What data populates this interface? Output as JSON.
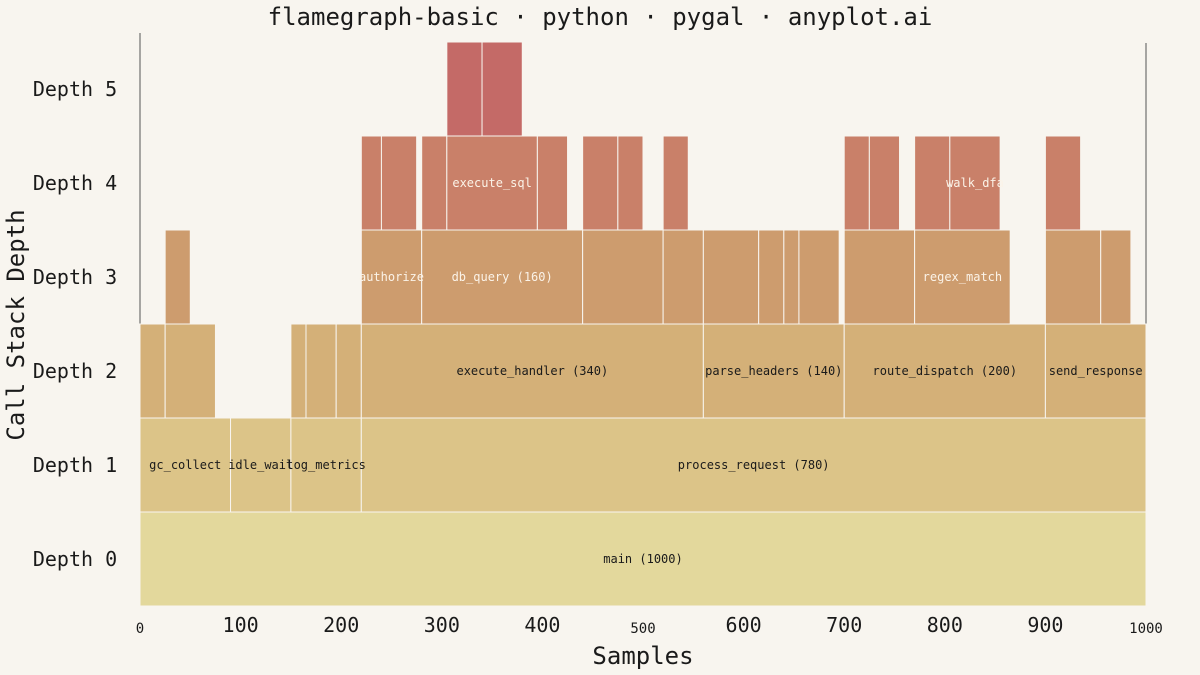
{
  "chart_data": {
    "type": "flamegraph",
    "title": "flamegraph-basic · python · pygal · anyplot.ai",
    "xlabel": "Samples",
    "ylabel": "Call Stack Depth",
    "xlim": [
      0,
      1000
    ],
    "x_ticks": [
      0,
      100,
      200,
      300,
      400,
      500,
      600,
      700,
      800,
      900,
      1000
    ],
    "y_ticks": [
      "Depth 0",
      "Depth 1",
      "Depth 2",
      "Depth 3",
      "Depth 4",
      "Depth 5"
    ],
    "depth_colors": [
      "#e3d89c",
      "#dcc488",
      "#d4b078",
      "#cd9c6e",
      "#c98069",
      "#c46a67"
    ],
    "frames": [
      {
        "depth": 0,
        "start": 0,
        "width": 1000,
        "label": "main (1000)"
      },
      {
        "depth": 1,
        "start": 0,
        "width": 90,
        "label": "gc_collect"
      },
      {
        "depth": 1,
        "start": 90,
        "width": 60,
        "label": "idle_wait"
      },
      {
        "depth": 1,
        "start": 150,
        "width": 70,
        "label": "log_metrics"
      },
      {
        "depth": 1,
        "start": 220,
        "width": 780,
        "label": "process_request (780)"
      },
      {
        "depth": 2,
        "start": 0,
        "width": 25,
        "label": ""
      },
      {
        "depth": 2,
        "start": 25,
        "width": 50,
        "label": ""
      },
      {
        "depth": 2,
        "start": 150,
        "width": 15,
        "label": ""
      },
      {
        "depth": 2,
        "start": 165,
        "width": 30,
        "label": ""
      },
      {
        "depth": 2,
        "start": 195,
        "width": 25,
        "label": ""
      },
      {
        "depth": 2,
        "start": 220,
        "width": 340,
        "label": "execute_handler (340)"
      },
      {
        "depth": 2,
        "start": 560,
        "width": 140,
        "label": "parse_headers (140)"
      },
      {
        "depth": 2,
        "start": 700,
        "width": 200,
        "label": "route_dispatch (200)"
      },
      {
        "depth": 2,
        "start": 900,
        "width": 100,
        "label": "send_response"
      },
      {
        "depth": 3,
        "start": 25,
        "width": 25,
        "label": ""
      },
      {
        "depth": 3,
        "start": 220,
        "width": 60,
        "label": "authorize"
      },
      {
        "depth": 3,
        "start": 280,
        "width": 160,
        "label": "db_query (160)"
      },
      {
        "depth": 3,
        "start": 440,
        "width": 80,
        "label": ""
      },
      {
        "depth": 3,
        "start": 520,
        "width": 40,
        "label": ""
      },
      {
        "depth": 3,
        "start": 560,
        "width": 55,
        "label": ""
      },
      {
        "depth": 3,
        "start": 615,
        "width": 25,
        "label": ""
      },
      {
        "depth": 3,
        "start": 640,
        "width": 15,
        "label": ""
      },
      {
        "depth": 3,
        "start": 655,
        "width": 40,
        "label": ""
      },
      {
        "depth": 3,
        "start": 700,
        "width": 70,
        "label": ""
      },
      {
        "depth": 3,
        "start": 770,
        "width": 95,
        "label": "regex_match"
      },
      {
        "depth": 3,
        "start": 900,
        "width": 55,
        "label": ""
      },
      {
        "depth": 3,
        "start": 955,
        "width": 30,
        "label": ""
      },
      {
        "depth": 4,
        "start": 220,
        "width": 20,
        "label": ""
      },
      {
        "depth": 4,
        "start": 240,
        "width": 35,
        "label": ""
      },
      {
        "depth": 4,
        "start": 280,
        "width": 25,
        "label": ""
      },
      {
        "depth": 4,
        "start": 305,
        "width": 90,
        "label": "execute_sql"
      },
      {
        "depth": 4,
        "start": 395,
        "width": 30,
        "label": ""
      },
      {
        "depth": 4,
        "start": 440,
        "width": 35,
        "label": ""
      },
      {
        "depth": 4,
        "start": 475,
        "width": 25,
        "label": ""
      },
      {
        "depth": 4,
        "start": 520,
        "width": 25,
        "label": ""
      },
      {
        "depth": 4,
        "start": 700,
        "width": 25,
        "label": ""
      },
      {
        "depth": 4,
        "start": 725,
        "width": 30,
        "label": ""
      },
      {
        "depth": 4,
        "start": 770,
        "width": 35,
        "label": ""
      },
      {
        "depth": 4,
        "start": 805,
        "width": 50,
        "label": "walk_dfa"
      },
      {
        "depth": 4,
        "start": 900,
        "width": 35,
        "label": ""
      },
      {
        "depth": 5,
        "start": 305,
        "width": 35,
        "label": ""
      },
      {
        "depth": 5,
        "start": 340,
        "width": 40,
        "label": ""
      }
    ]
  }
}
